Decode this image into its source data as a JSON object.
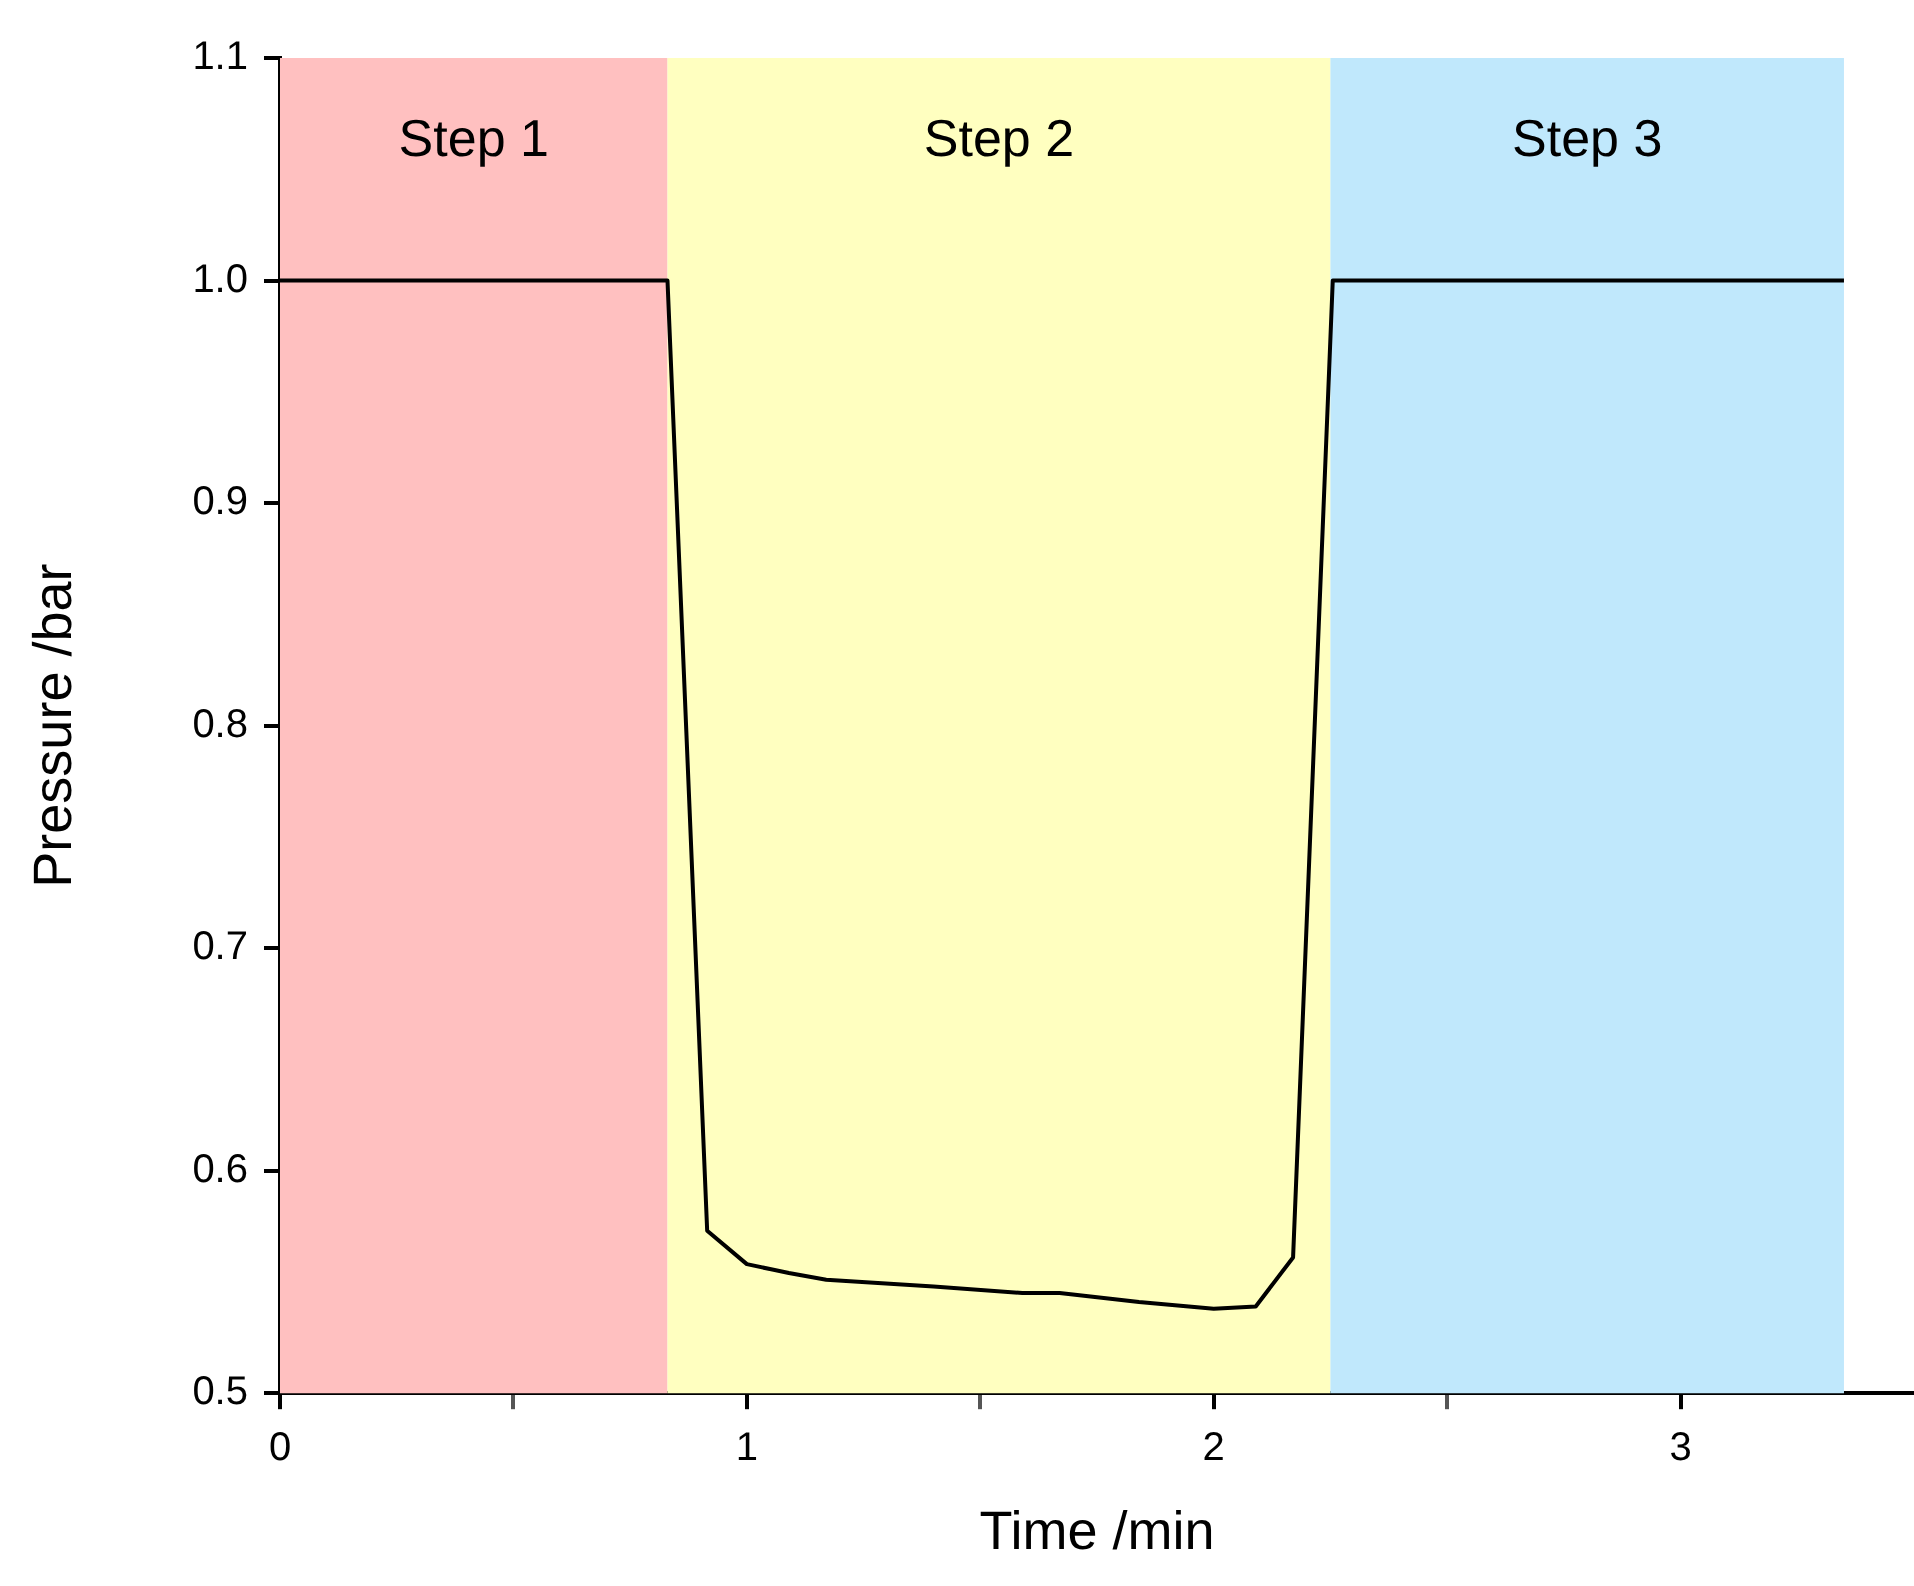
{
  "chart_data": {
    "type": "line",
    "xlabel": "Time /min",
    "ylabel": "Pressure /bar",
    "x": [
      0,
      0.83,
      0.915,
      1.0,
      1.09,
      1.17,
      1.4,
      1.59,
      1.67,
      1.84,
      2.0,
      2.09,
      2.17,
      2.255,
      3.35
    ],
    "series": [
      {
        "color": "#000000",
        "values": [
          1.0,
          1.0,
          0.573,
          0.558,
          0.554,
          0.551,
          0.548,
          0.545,
          0.545,
          0.541,
          0.538,
          0.539,
          0.561,
          1.0,
          1.0
        ]
      }
    ],
    "xlim": [
      0,
      3.5
    ],
    "xticks": [
      0,
      {
        "value": 0.5,
        "label": null
      },
      1,
      {
        "value": 1.5,
        "label": null
      },
      2,
      {
        "value": 2.5,
        "label": null
      },
      3
    ],
    "ylim": [
      0.5,
      1.1
    ],
    "yticks": [
      0.5,
      0.6,
      0.7,
      0.8,
      0.9,
      {
        "value": 1.0,
        "label": "1.0"
      },
      1.1
    ],
    "bands": [
      {
        "axis": "x",
        "from": 0,
        "to": 0.83,
        "label": "Step 1",
        "color": "#ffc0c0"
      },
      {
        "axis": "x",
        "from": 0.83,
        "to": 2.25,
        "label": "Step 2",
        "color": "#ffffc0"
      },
      {
        "axis": "x",
        "from": 2.25,
        "to": 3.35,
        "label": "Step 3",
        "color": "#c0e8fc"
      }
    ],
    "grid": false,
    "legend": false,
    "marker": "none",
    "line_style": "solid"
  }
}
